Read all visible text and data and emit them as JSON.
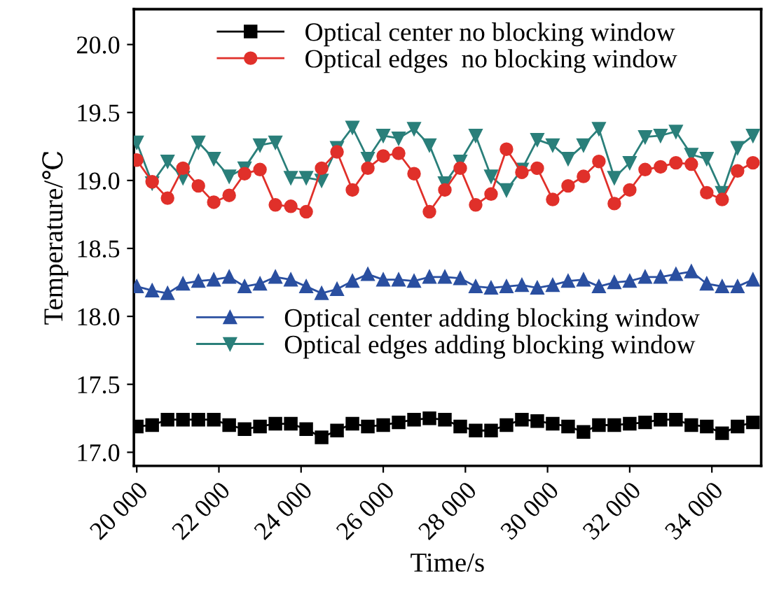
{
  "chart_data": {
    "type": "line",
    "xlabel": "Time/s",
    "ylabel": "Temperature/℃",
    "x": [
      20000,
      20375,
      20750,
      21125,
      21500,
      21875,
      22250,
      22625,
      23000,
      23375,
      23750,
      24125,
      24500,
      24875,
      25250,
      25625,
      26000,
      26375,
      26750,
      27125,
      27500,
      27875,
      28250,
      28625,
      29000,
      29375,
      29750,
      30125,
      30500,
      30875,
      31250,
      31625,
      32000,
      32375,
      32750,
      33125,
      33500,
      33875,
      34250,
      34625,
      35000
    ],
    "series": [
      {
        "name": "Optical center no blocking window",
        "color": "#000000",
        "marker": "square",
        "values": [
          17.19,
          17.2,
          17.24,
          17.24,
          17.24,
          17.24,
          17.2,
          17.17,
          17.19,
          17.21,
          17.21,
          17.17,
          17.11,
          17.16,
          17.21,
          17.19,
          17.2,
          17.22,
          17.24,
          17.25,
          17.24,
          17.19,
          17.16,
          17.16,
          17.2,
          17.24,
          17.23,
          17.21,
          17.19,
          17.15,
          17.2,
          17.2,
          17.21,
          17.22,
          17.24,
          17.24,
          17.2,
          17.19,
          17.14,
          17.19,
          17.22
        ]
      },
      {
        "name": "Optical edges  no blocking window",
        "color": "#e0302a",
        "marker": "circle",
        "values": [
          19.15,
          18.99,
          18.87,
          19.09,
          18.96,
          18.84,
          18.89,
          19.05,
          19.08,
          18.82,
          18.81,
          18.77,
          19.09,
          19.21,
          18.93,
          19.09,
          19.18,
          19.2,
          19.05,
          18.77,
          18.93,
          19.09,
          18.82,
          18.9,
          19.23,
          19.06,
          19.09,
          18.86,
          18.96,
          19.03,
          19.14,
          18.83,
          18.93,
          19.08,
          19.1,
          19.13,
          19.12,
          18.91,
          18.86,
          19.07,
          19.13
        ]
      },
      {
        "name": "Optical center adding blocking window",
        "color": "#2a4fa0",
        "marker": "triangle",
        "values": [
          18.22,
          18.19,
          18.17,
          18.24,
          18.26,
          18.27,
          18.29,
          18.22,
          18.24,
          18.29,
          18.27,
          18.22,
          18.17,
          18.2,
          18.26,
          18.31,
          18.27,
          18.27,
          18.26,
          18.29,
          18.29,
          18.28,
          18.22,
          18.21,
          18.22,
          18.23,
          18.21,
          18.23,
          18.26,
          18.27,
          18.22,
          18.25,
          18.26,
          18.29,
          18.29,
          18.31,
          18.33,
          18.24,
          18.22,
          18.22,
          18.27
        ]
      },
      {
        "name": "Optical edges adding blocking window",
        "color": "#2a7f7a",
        "marker": "triangle_down",
        "values": [
          19.28,
          18.98,
          19.14,
          19.02,
          19.28,
          19.16,
          19.03,
          19.09,
          19.26,
          19.28,
          19.02,
          19.02,
          19.0,
          19.24,
          19.39,
          19.16,
          19.33,
          19.31,
          19.38,
          19.26,
          18.98,
          19.14,
          19.33,
          19.03,
          18.93,
          19.08,
          19.3,
          19.26,
          19.16,
          19.26,
          19.38,
          19.02,
          19.13,
          19.32,
          19.33,
          19.36,
          19.19,
          19.16,
          18.91,
          19.24,
          19.33
        ]
      }
    ],
    "xlim": [
      19930,
      35200
    ],
    "xticks": [
      {
        "value": 20000,
        "label": "20 000"
      },
      {
        "value": 22000,
        "label": "22 000"
      },
      {
        "value": 24000,
        "label": "24 000"
      },
      {
        "value": 26000,
        "label": "26 000"
      },
      {
        "value": 28000,
        "label": "28 000"
      },
      {
        "value": 30000,
        "label": "30 000"
      },
      {
        "value": 32000,
        "label": "32 000"
      },
      {
        "value": 34000,
        "label": "34 000"
      }
    ],
    "ylim": [
      16.9,
      20.26
    ],
    "yticks": [
      {
        "value": 17,
        "label": "17.0"
      },
      17.5,
      {
        "value": 18,
        "label": "18.0"
      },
      18.5,
      {
        "value": 19,
        "label": "19.0"
      },
      19.5,
      {
        "value": 20,
        "label": "20.0"
      }
    ],
    "grid": false,
    "legend": "top",
    "line_style": "solid"
  }
}
